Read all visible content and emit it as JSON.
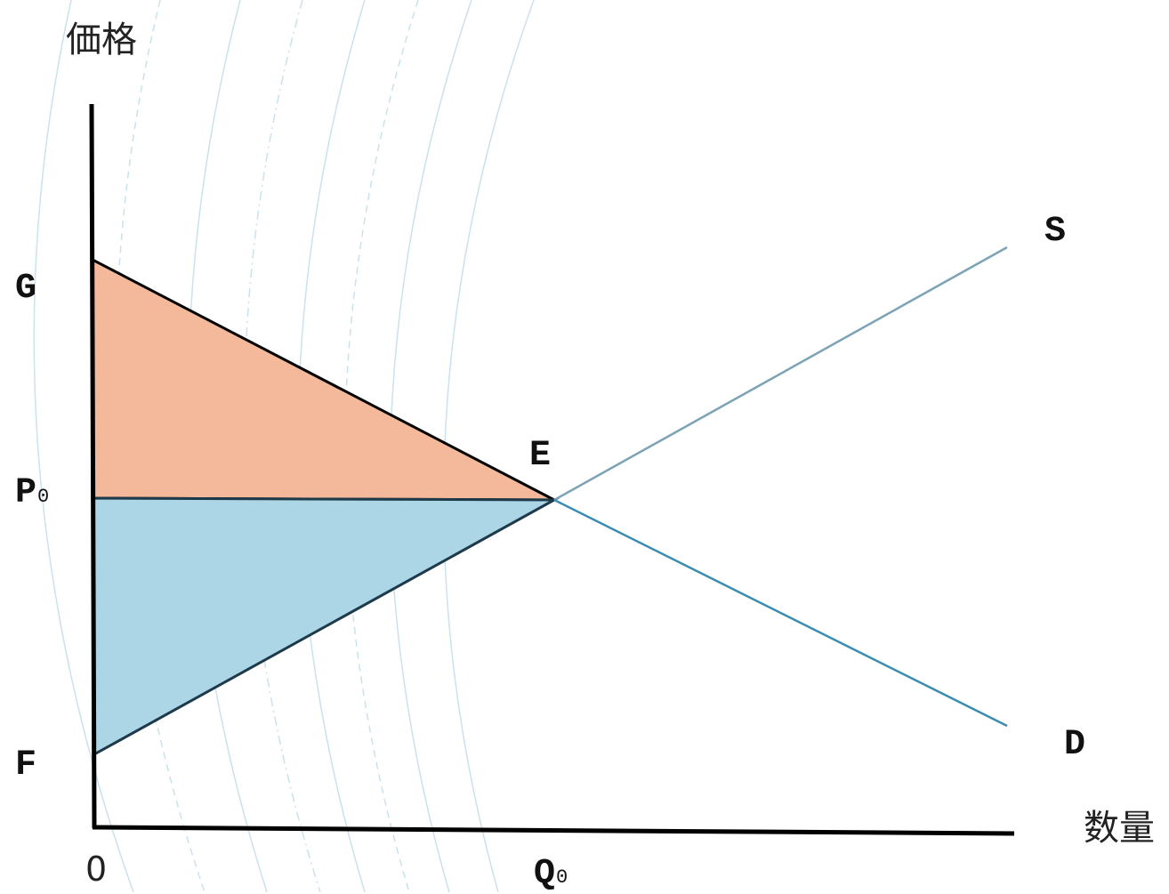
{
  "axes": {
    "y_title": "価格",
    "x_title": "数量",
    "origin": "0"
  },
  "points": {
    "G": {
      "label": "G"
    },
    "P0": {
      "label": "P",
      "subscript": "0"
    },
    "F": {
      "label": "F"
    },
    "E": {
      "label": "E"
    },
    "Q0": {
      "label": "Q",
      "subscript": "0"
    }
  },
  "curves": {
    "supply": {
      "label": "S",
      "color": "#7ba3b5"
    },
    "demand": {
      "label": "D",
      "color": "#3a8db0"
    }
  },
  "regions": {
    "consumer_surplus": {
      "color": "#f4b89a"
    },
    "producer_surplus": {
      "color": "#acd5e6"
    }
  },
  "colors": {
    "axis": "#000000",
    "background_arcs": "#c9e2ee"
  }
}
